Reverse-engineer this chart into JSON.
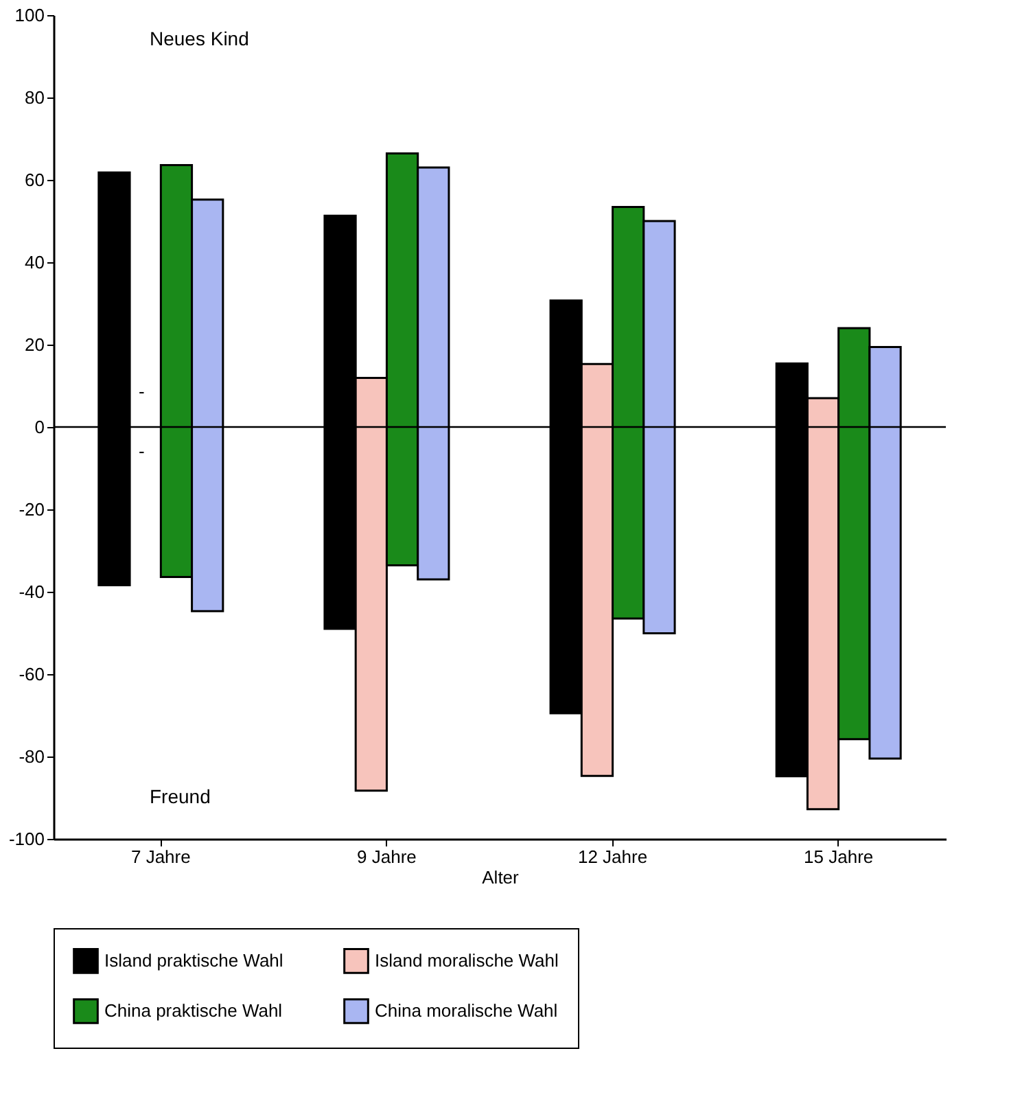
{
  "chart_data": {
    "type": "bar",
    "xlabel": "Alter",
    "categories": [
      "7 Jahre",
      "9 Jahre",
      "12 Jahre",
      "15 Jahre"
    ],
    "series": [
      {
        "name": "Island praktische Wahl",
        "color": "#000000",
        "base": [
          -38.4,
          -49,
          -69.5,
          -84.8
        ],
        "values": [
          100.2,
          100.3,
          100.2,
          100.2
        ]
      },
      {
        "name": "Island moralische Wahl",
        "color": "#f7c4bc",
        "base": [
          null,
          -88.3,
          -84.7,
          -92.8
        ],
        "values": [
          null,
          100.2,
          100,
          99.8
        ]
      },
      {
        "name": "China praktische Wahl",
        "color": "#1a8a1a",
        "base": [
          -36.4,
          -33.6,
          -46.5,
          -75.8
        ],
        "values": [
          100,
          100,
          99.9,
          99.8
        ]
      },
      {
        "name": "China moralische Wahl",
        "color": "#a9b6f2",
        "base": [
          -44.7,
          -37,
          -50.1,
          -80.5
        ],
        "values": [
          99.9,
          100,
          100.1,
          99.9
        ]
      }
    ],
    "ylim": [
      -100,
      100
    ],
    "yticks": [
      -100,
      -80,
      -60,
      -40,
      -20,
      0,
      20,
      40,
      60,
      80,
      100
    ],
    "ref_lines": [
      {
        "axis": "y",
        "value": 0
      }
    ],
    "annotations": [
      "Neues Kind",
      "Freund",
      {
        "text": "-",
        "x": "7 Jahre",
        "y": 8.5
      },
      {
        "text": "-",
        "x": "7 Jahre",
        "y": -6
      }
    ],
    "legend": "bottom",
    "grid": false
  }
}
